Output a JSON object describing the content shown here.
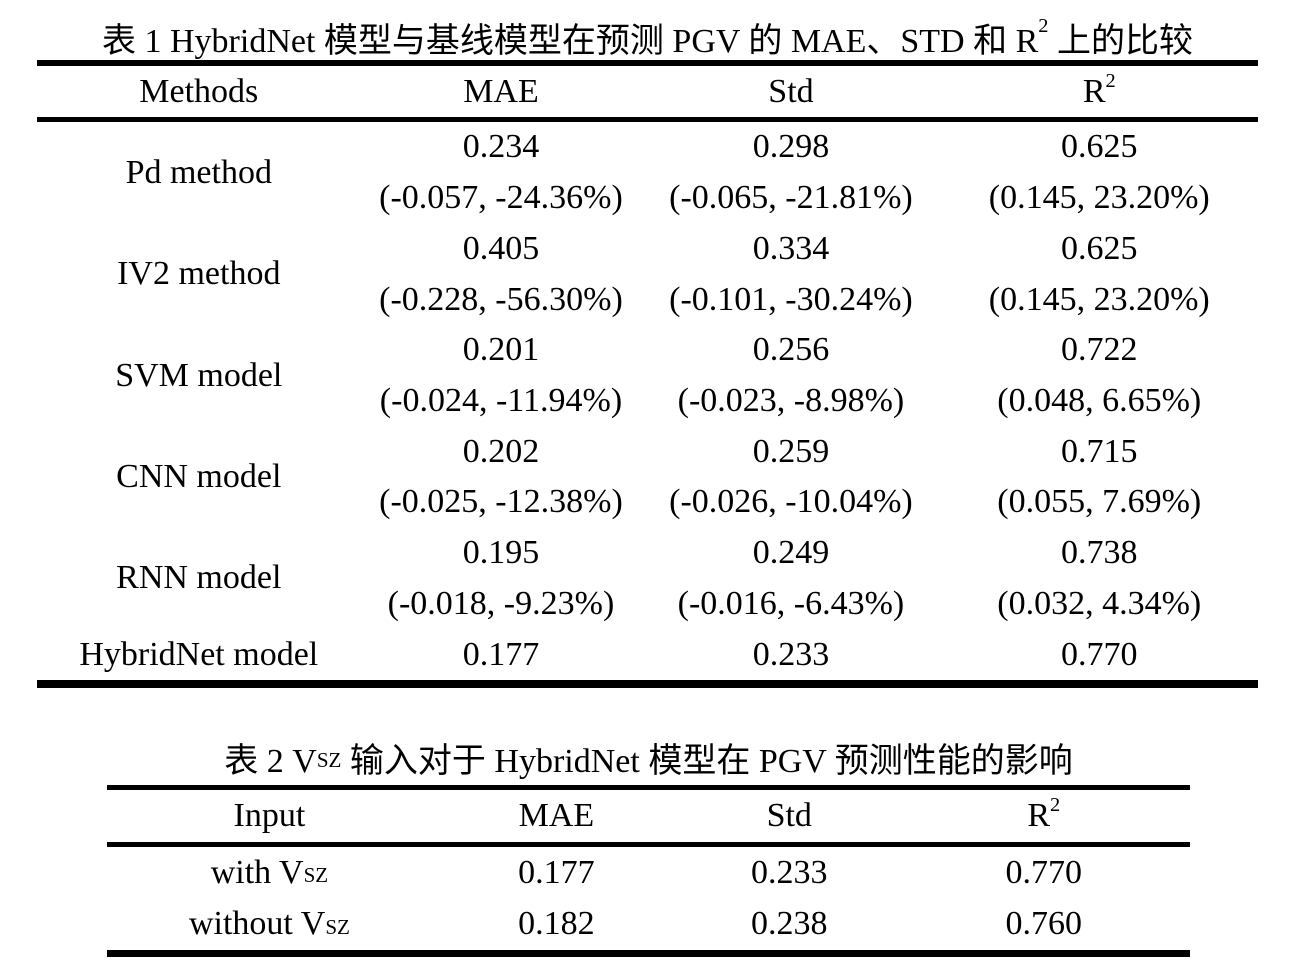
{
  "page": {
    "background_color": "#ffffff",
    "text_color": "#000000"
  },
  "table1": {
    "title_pre": "表 1 HybridNet 模型与基线模型在预测 PGV 的 MAE、STD 和 R",
    "title_sup": "2",
    "title_post": " 上的比较",
    "headers": {
      "col1": "Methods",
      "col2": "MAE",
      "col3": "Std",
      "col4_base": "R",
      "col4_sup": "2"
    },
    "rows": [
      {
        "method": "Pd method",
        "mae": "0.234",
        "mae_delta": "(-0.057, -24.36%)",
        "std": "0.298",
        "std_delta": "(-0.065, -21.81%)",
        "r2": "0.625",
        "r2_delta": "(0.145, 23.20%)"
      },
      {
        "method": "IV2 method",
        "mae": "0.405",
        "mae_delta": "(-0.228, -56.30%)",
        "std": "0.334",
        "std_delta": "(-0.101, -30.24%)",
        "r2": "0.625",
        "r2_delta": "(0.145, 23.20%)"
      },
      {
        "method": "SVM model",
        "mae": "0.201",
        "mae_delta": "(-0.024, -11.94%)",
        "std": "0.256",
        "std_delta": "(-0.023, -8.98%)",
        "r2": "0.722",
        "r2_delta": "(0.048, 6.65%)"
      },
      {
        "method": "CNN model",
        "mae": "0.202",
        "mae_delta": "(-0.025, -12.38%)",
        "std": "0.259",
        "std_delta": "(-0.026, -10.04%)",
        "r2": "0.715",
        "r2_delta": "(0.055, 7.69%)"
      },
      {
        "method": "RNN model",
        "mae": "0.195",
        "mae_delta": "(-0.018, -9.23%)",
        "std": "0.249",
        "std_delta": "(-0.016, -6.43%)",
        "r2": "0.738",
        "r2_delta": "(0.032, 4.34%)"
      }
    ],
    "summary_row": {
      "method": "HybridNet model",
      "mae": "0.177",
      "std": "0.233",
      "r2": "0.770"
    }
  },
  "table2": {
    "title_pre": "表 2 V",
    "title_sub": "SZ",
    "title_post": " 输入对于 HybridNet 模型在 PGV 预测性能的影响",
    "headers": {
      "col1": "Input",
      "col2": "MAE",
      "col3": "Std",
      "col4_base": "R",
      "col4_sup": "2"
    },
    "rows": [
      {
        "input_pre": "with V",
        "input_sub": "SZ",
        "mae": "0.177",
        "std": "0.233",
        "r2": "0.770"
      },
      {
        "input_pre": "without V",
        "input_sub": "SZ",
        "mae": "0.182",
        "std": "0.238",
        "r2": "0.760"
      }
    ]
  }
}
